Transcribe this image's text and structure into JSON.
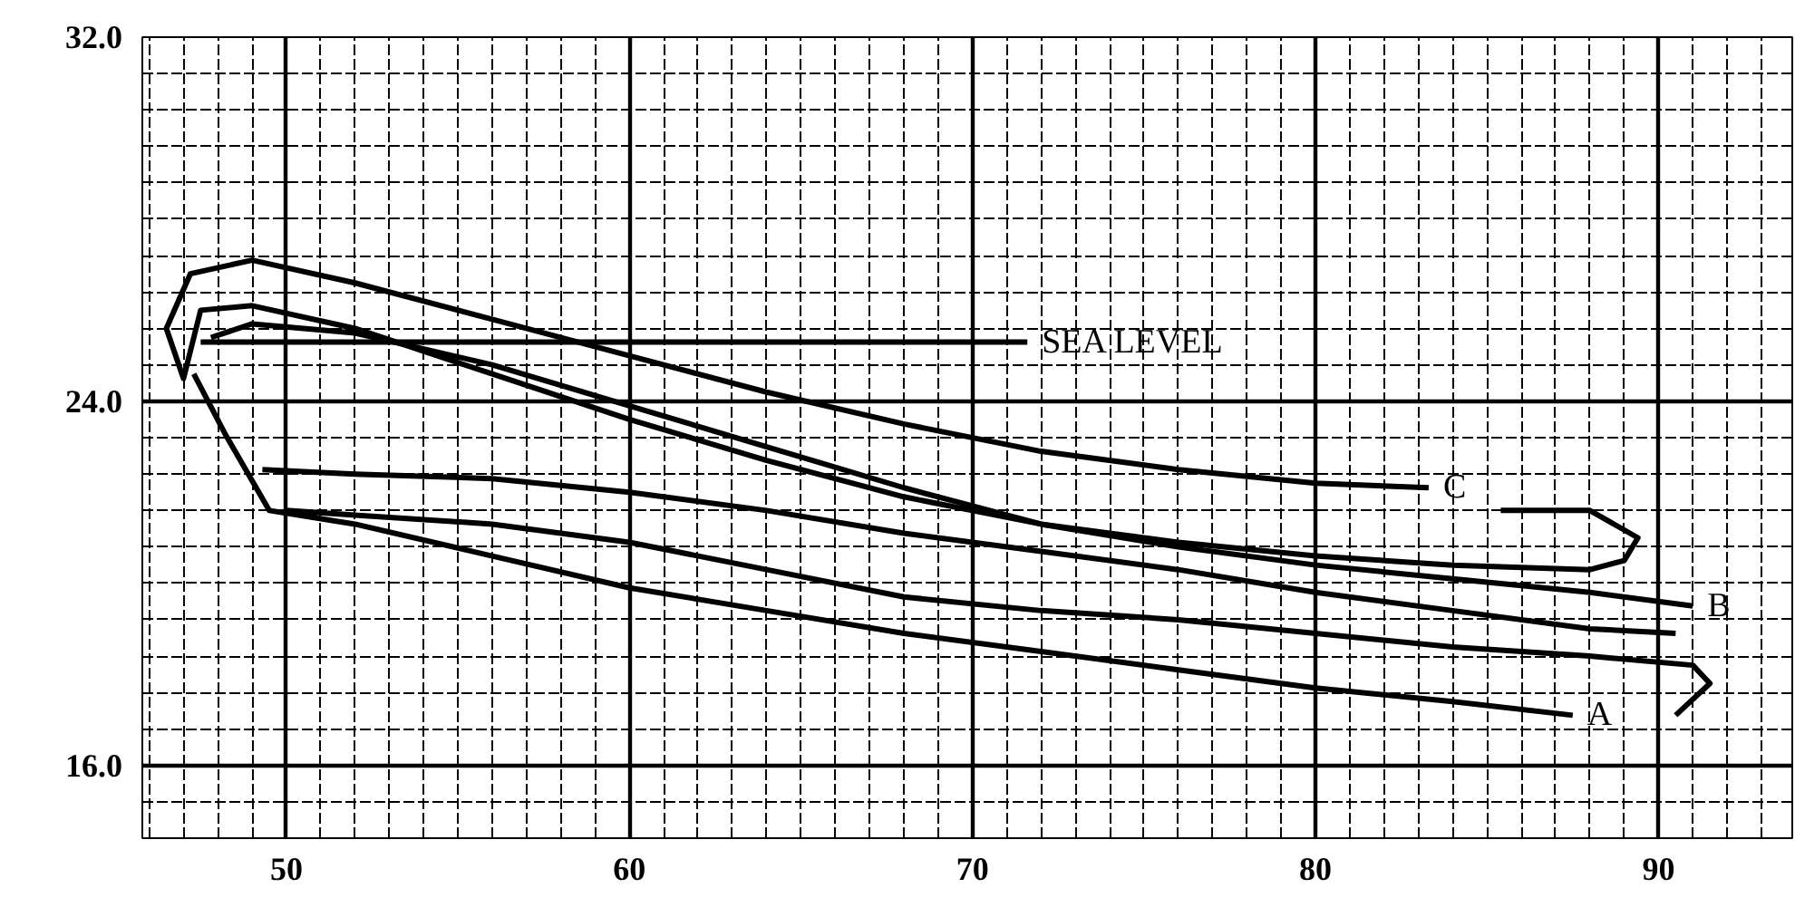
{
  "chart_data": {
    "type": "line",
    "xlim": [
      45.8,
      93.9
    ],
    "ylim": [
      14.4,
      32.0
    ],
    "xticks": [
      50,
      60,
      70,
      80,
      90
    ],
    "yticks": [
      {
        "value": 32,
        "label": "32.0"
      },
      {
        "value": 24,
        "label": "24.0"
      },
      {
        "value": 16,
        "label": "16.0"
      }
    ],
    "grid": true,
    "marker": "none",
    "line_style": "solid",
    "series": [
      {
        "name": "SEA LEVEL",
        "color": "#000000",
        "x": [
          47.5,
          71.6
        ],
        "values": [
          25.3,
          25.3
        ]
      },
      {
        "name": "A",
        "color": "#000000",
        "x": [
          50,
          52,
          56,
          60,
          64,
          68,
          72,
          76,
          80,
          84,
          88,
          91,
          91.5,
          90.5,
          89.5,
          47.3,
          48.2,
          49.5,
          52,
          56,
          60,
          64,
          68,
          72,
          76,
          80,
          84,
          87.5
        ],
        "values": [
          21.6,
          21.5,
          21.3,
          20.9,
          20.3,
          19.7,
          19.4,
          19.2,
          18.9,
          18.6,
          18.4,
          18.2,
          17.8,
          17.1,
          null,
          24.6,
          23.3,
          21.6,
          21.3,
          20.6,
          19.9,
          19.4,
          18.9,
          18.5,
          18.1,
          17.7,
          17.4,
          17.1
        ]
      },
      {
        "name": "B",
        "color": "#000000",
        "x": [
          90.5,
          88,
          84,
          80,
          76,
          72,
          68,
          64,
          60,
          56,
          52,
          49.3,
          48,
          47.8,
          49,
          52,
          56,
          60,
          64,
          68,
          72,
          76,
          80,
          84,
          88,
          91
        ],
        "values": [
          18.9,
          19.0,
          19.4,
          19.8,
          20.3,
          20.7,
          21.1,
          21.6,
          22.0,
          22.3,
          22.4,
          22.5,
          null,
          25.4,
          25.7,
          25.5,
          24.8,
          23.9,
          23.0,
          22.1,
          21.3,
          20.8,
          20.4,
          20.1,
          19.8,
          19.5
        ]
      },
      {
        "name": "C",
        "color": "#000000",
        "x": [
          85.4,
          88,
          89.4,
          89,
          88,
          84,
          80,
          76,
          72,
          68,
          64,
          60,
          56,
          52,
          49,
          47.5,
          47.0,
          46.5,
          47.2,
          49,
          52,
          56,
          60,
          64,
          68,
          72,
          76,
          80,
          83.3
        ],
        "values": [
          21.6,
          21.6,
          21.0,
          20.5,
          20.3,
          20.4,
          20.6,
          20.9,
          21.3,
          21.9,
          22.7,
          23.6,
          24.6,
          25.6,
          26.1,
          26.0,
          24.5,
          25.6,
          26.8,
          27.1,
          26.6,
          25.8,
          25.0,
          24.2,
          23.5,
          22.9,
          22.5,
          22.2,
          22.1
        ]
      }
    ]
  }
}
